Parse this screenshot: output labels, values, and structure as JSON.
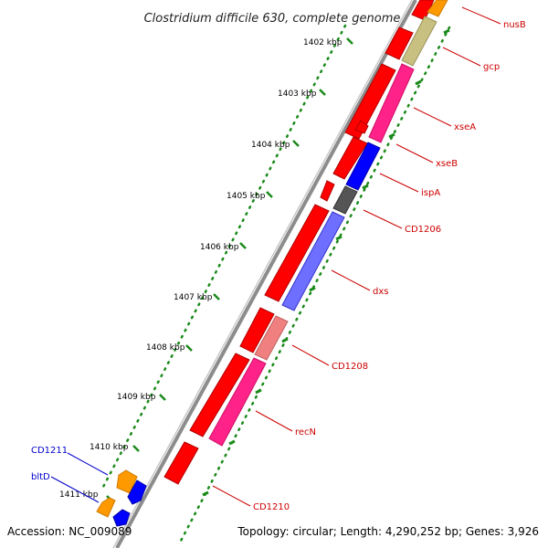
{
  "title": "Clostridium difficile 630, complete genome",
  "footer": {
    "accession": "Accession: NC_009089",
    "summary": "Topology: circular; Length: 4,290,252 bp; Genes: 3,926"
  },
  "ticks": [
    {
      "label": "1402 kbp"
    },
    {
      "label": "1403 kbp"
    },
    {
      "label": "1404 kbp"
    },
    {
      "label": "1405 kbp"
    },
    {
      "label": "1406 kbp"
    },
    {
      "label": "1407 kbp"
    },
    {
      "label": "1408 kbp"
    },
    {
      "label": "1409 kbp"
    },
    {
      "label": "1410 kbp"
    },
    {
      "label": "1411 kbp"
    }
  ],
  "genes_reverse": [
    {
      "name": "CD1211",
      "color": "#0000cc"
    },
    {
      "name": "bltD",
      "color": "#0000cc"
    }
  ],
  "genes_forward": [
    {
      "name": "nusB",
      "color": "#cc0000"
    },
    {
      "name": "gcp",
      "color": "#cc0000"
    },
    {
      "name": "xseA",
      "color": "#cc0000"
    },
    {
      "name": "xseB",
      "color": "#cc0000"
    },
    {
      "name": "ispA",
      "color": "#cc0000"
    },
    {
      "name": "CD1206",
      "color": "#cc0000"
    },
    {
      "name": "dxs",
      "color": "#cc0000"
    },
    {
      "name": "CD1208",
      "color": "#cc0000"
    },
    {
      "name": "recN",
      "color": "#cc0000"
    },
    {
      "name": "CD1210",
      "color": "#cc0000"
    }
  ],
  "colors": {
    "cds": "#ff0000",
    "backbone": "#808080",
    "tick": "#1a8a1a",
    "gc_skew_dots": "#1a8a1a"
  }
}
